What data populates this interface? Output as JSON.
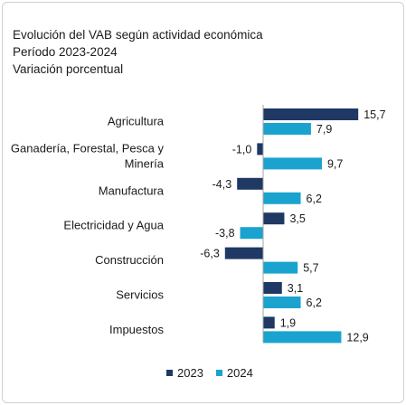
{
  "title_lines": [
    "Evolución del VAB según actividad económica",
    "Período 2023-2024",
    "Variación porcentual"
  ],
  "colors": {
    "series_2023": "#1f3864",
    "series_2024": "#1ba3cf",
    "axis": "#a6a6a6"
  },
  "chart_data": {
    "type": "bar",
    "orientation": "horizontal",
    "categories": [
      [
        "Agricultura"
      ],
      [
        "Ganadería, Forestal, Pesca y",
        "Minería"
      ],
      [
        "Manufactura"
      ],
      [
        "Electricidad y Agua"
      ],
      [
        "Construcción"
      ],
      [
        "Servicios"
      ],
      [
        "Impuestos"
      ]
    ],
    "series": [
      {
        "name": "2023",
        "values": [
          15.7,
          -1.0,
          -4.3,
          3.5,
          -6.3,
          3.1,
          1.9
        ],
        "labels": [
          "15,7",
          "-1,0",
          "-4,3",
          "3,5",
          "-6,3",
          "3,1",
          "1,9"
        ]
      },
      {
        "name": "2024",
        "values": [
          7.9,
          9.7,
          6.2,
          -3.8,
          5.7,
          6.2,
          12.9
        ],
        "labels": [
          "7,9",
          "9,7",
          "6,2",
          "-3,8",
          "5,7",
          "6,2",
          "12,9"
        ]
      }
    ],
    "legend_position": "bottom",
    "grid": false
  },
  "legend": {
    "items": [
      "2023",
      "2024"
    ]
  }
}
